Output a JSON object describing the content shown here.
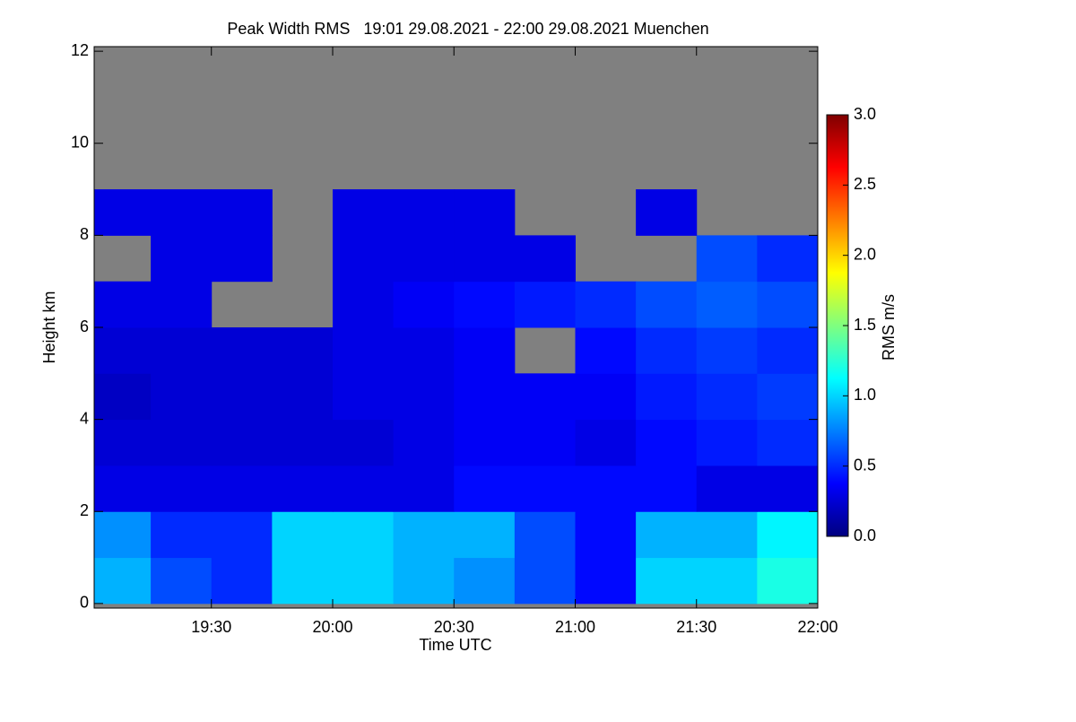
{
  "chart_data": {
    "type": "heatmap",
    "title": "Peak Width RMS   19:01 29.08.2021 - 22:00 29.08.2021 Muenchen",
    "x_label": "Time UTC",
    "y_label": "Height km",
    "colorbar_label": "RMS m/s",
    "x_bins": [
      19.0167,
      19.25,
      19.5,
      19.75,
      20.0,
      20.25,
      20.5,
      20.75,
      21.0,
      21.25,
      21.5,
      21.75,
      22.0
    ],
    "y_bins": [
      0,
      1,
      2,
      3,
      4,
      5,
      6,
      7,
      8,
      9,
      10,
      11,
      12
    ],
    "z": [
      [
        0.9,
        0.6,
        0.5,
        1.0,
        1.0,
        0.9,
        0.8,
        0.6,
        0.4,
        1.0,
        1.0,
        1.2
      ],
      [
        0.8,
        0.5,
        0.5,
        1.0,
        1.0,
        0.9,
        0.9,
        0.6,
        0.4,
        0.9,
        0.9,
        1.1
      ],
      [
        0.3,
        0.3,
        0.3,
        0.3,
        0.3,
        0.3,
        0.4,
        0.4,
        0.4,
        0.4,
        0.3,
        0.3
      ],
      [
        0.25,
        0.25,
        0.25,
        0.25,
        0.25,
        0.3,
        0.35,
        0.35,
        0.3,
        0.4,
        0.45,
        0.5
      ],
      [
        0.2,
        0.25,
        0.25,
        0.25,
        0.3,
        0.3,
        0.35,
        0.35,
        0.35,
        0.45,
        0.5,
        0.55
      ],
      [
        0.25,
        0.25,
        0.25,
        0.25,
        0.3,
        0.3,
        0.35,
        null,
        0.4,
        0.5,
        0.55,
        0.5
      ],
      [
        0.3,
        0.3,
        null,
        null,
        0.3,
        0.35,
        0.4,
        0.45,
        0.5,
        0.6,
        0.65,
        0.6
      ],
      [
        null,
        0.3,
        0.3,
        null,
        0.3,
        0.3,
        0.3,
        0.3,
        null,
        null,
        0.6,
        0.5
      ],
      [
        0.3,
        0.3,
        0.3,
        null,
        0.3,
        0.3,
        0.3,
        null,
        null,
        0.3,
        null,
        null
      ],
      [
        null,
        null,
        null,
        null,
        null,
        null,
        null,
        null,
        null,
        null,
        null,
        null
      ],
      [
        null,
        null,
        null,
        null,
        null,
        null,
        null,
        null,
        null,
        null,
        null,
        null
      ],
      [
        null,
        null,
        null,
        null,
        null,
        null,
        null,
        null,
        null,
        null,
        null,
        null
      ]
    ],
    "xlim": [
      19.0167,
      22.0
    ],
    "xticks": [
      {
        "value": 19.5,
        "label": "19:30"
      },
      {
        "value": 20.0,
        "label": "20:00"
      },
      {
        "value": 20.5,
        "label": "20:30"
      },
      {
        "value": 21.0,
        "label": "21:00"
      },
      {
        "value": 21.5,
        "label": "21:30"
      },
      {
        "value": 22.0,
        "label": "22:00"
      }
    ],
    "ylim": [
      -0.1,
      12.1
    ],
    "yticks": [
      0,
      2,
      4,
      6,
      8,
      10,
      12
    ],
    "zlim": [
      0,
      3
    ],
    "zticks": [
      {
        "value": 0,
        "label": "0.0"
      },
      {
        "value": 0.5,
        "label": "0.5"
      },
      {
        "value": 1,
        "label": "1.0"
      },
      {
        "value": 1.5,
        "label": "1.5"
      },
      {
        "value": 2,
        "label": "2.0"
      },
      {
        "value": 2.5,
        "label": "2.5"
      },
      {
        "value": 3,
        "label": "3.0"
      }
    ],
    "missing_color": "#808080",
    "colormap": [
      "#00007f",
      "#0000ff",
      "#007fff",
      "#00ffff",
      "#7fff7f",
      "#ffff00",
      "#ff7f00",
      "#ff0000",
      "#7f0000"
    ]
  }
}
